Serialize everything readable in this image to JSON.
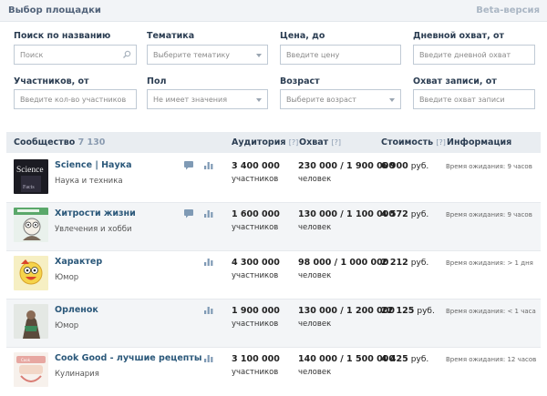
{
  "header": {
    "title": "Выбор площадки",
    "beta": "Beta-версия"
  },
  "filters": [
    {
      "label": "Поиск по названию",
      "placeholder": "Поиск",
      "kind": "search"
    },
    {
      "label": "Тематика",
      "placeholder": "Выберите тематику",
      "kind": "select"
    },
    {
      "label": "Цена, до",
      "placeholder": "Введите цену",
      "kind": "text"
    },
    {
      "label": "Дневной охват, от",
      "placeholder": "Введите дневной охват",
      "kind": "text"
    },
    {
      "label": "Участников, от",
      "placeholder": "Введите кол-во участников",
      "kind": "text"
    },
    {
      "label": "Пол",
      "placeholder": "Не имеет значения",
      "kind": "select"
    },
    {
      "label": "Возраст",
      "placeholder": "Выберите возраст",
      "kind": "select"
    },
    {
      "label": "Охват записи, от",
      "placeholder": "Введите охват записи",
      "kind": "text"
    }
  ],
  "table": {
    "headers": {
      "community": "Сообщество",
      "community_count": "7 130",
      "audience": "Аудитория",
      "reach": "Охват",
      "cost": "Стоимость",
      "info": "Информация",
      "help_mark": "[?]"
    },
    "rows": [
      {
        "name": "Science | Наука",
        "category": "Наука и техника",
        "audience": "3 400 000",
        "audience_unit": "участников",
        "reach": "230 000 / 1 900 000",
        "reach_unit": "человек",
        "cost": "6 900",
        "currency": "руб.",
        "wait": "Время ожидания: 9 часов",
        "icons": [
          "comment-icon",
          "stats-icon"
        ],
        "avatar": "science"
      },
      {
        "name": "Хитрости жизни",
        "category": "Увлечения и хобби",
        "audience": "1 600 000",
        "audience_unit": "участников",
        "reach": "130 000 / 1 100 000",
        "reach_unit": "человек",
        "cost": "4 572",
        "currency": "руб.",
        "wait": "Время ожидания: 9 часов",
        "icons": [
          "comment-icon",
          "stats-icon"
        ],
        "avatar": "lifehacks"
      },
      {
        "name": "Характер",
        "category": "Юмор",
        "audience": "4 300 000",
        "audience_unit": "участников",
        "reach": "98 000 / 1 000 000",
        "reach_unit": "человек",
        "cost": "2 212",
        "currency": "руб.",
        "wait": "Время ожидания: > 1 дня",
        "icons": [
          "stats-icon"
        ],
        "avatar": "character"
      },
      {
        "name": "Орленок",
        "category": "Юмор",
        "audience": "1 900 000",
        "audience_unit": "участников",
        "reach": "130 000 / 1 200 000",
        "reach_unit": "человек",
        "cost": "22 125",
        "currency": "руб.",
        "wait": "Время ожидания: < 1 часа",
        "icons": [
          "stats-icon"
        ],
        "avatar": "eagle"
      },
      {
        "name": "Cook Good - лучшие рецепты",
        "category": "Кулинария",
        "audience": "3 100 000",
        "audience_unit": "участников",
        "reach": "140 000 / 1 500 000",
        "reach_unit": "человек",
        "cost": "4 425",
        "currency": "руб.",
        "wait": "Время ожидания: 12 часов",
        "icons": [
          "stats-icon"
        ],
        "avatar": "cook"
      }
    ]
  },
  "colors": {
    "link": "#2b587a",
    "label": "#2b3d52",
    "header_bg": "#e9edf1",
    "alt_row": "#f3f5f7",
    "icon": "#7f9ab5"
  }
}
